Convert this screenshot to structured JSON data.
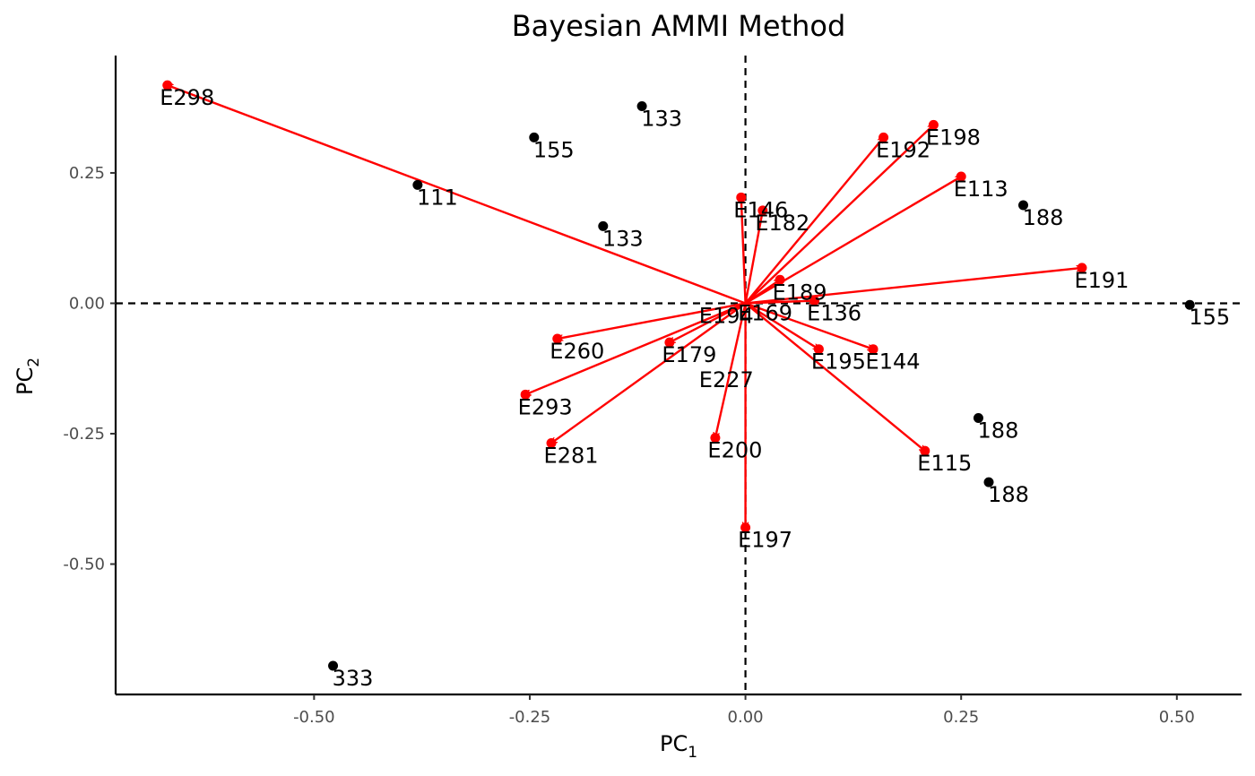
{
  "chart_data": {
    "type": "scatter",
    "title": "Bayesian AMMI Method",
    "xlabel": {
      "base": "PC",
      "sub": "1"
    },
    "ylabel": {
      "base": "PC",
      "sub": "2"
    },
    "xlim": [
      -0.73,
      0.575
    ],
    "ylim": [
      -0.75,
      0.475
    ],
    "x_ticks": [
      -0.5,
      -0.25,
      0.0,
      0.25,
      0.5
    ],
    "x_tick_labels": [
      "-0.50",
      "-0.25",
      "0.00",
      "0.25",
      "0.50"
    ],
    "y_ticks": [
      -0.5,
      -0.25,
      0.0,
      0.25
    ],
    "y_tick_labels": [
      "-0.50",
      "-0.25",
      "0.00",
      "0.25"
    ],
    "reference_lines": {
      "x": 0,
      "y": 0,
      "style": "dashed"
    },
    "grid": false,
    "colors": {
      "genotype": "#000000",
      "environment": "#ff0000",
      "reference": "#000000"
    },
    "genotypes": [
      {
        "x": -0.12,
        "y": 0.378,
        "label": "133"
      },
      {
        "x": -0.245,
        "y": 0.318,
        "label": "155"
      },
      {
        "x": -0.38,
        "y": 0.227,
        "label": "111"
      },
      {
        "x": -0.165,
        "y": 0.148,
        "label": "133"
      },
      {
        "x": 0.322,
        "y": 0.188,
        "label": "188"
      },
      {
        "x": 0.515,
        "y": -0.003,
        "label": "155"
      },
      {
        "x": 0.27,
        "y": -0.22,
        "label": "188"
      },
      {
        "x": 0.282,
        "y": -0.343,
        "label": "188"
      },
      {
        "x": -0.478,
        "y": -0.695,
        "label": "333"
      }
    ],
    "environments": [
      {
        "x": -0.67,
        "y": 0.418,
        "label": "E298"
      },
      {
        "x": 0.218,
        "y": 0.342,
        "label": "E198"
      },
      {
        "x": 0.16,
        "y": 0.318,
        "label": "E192"
      },
      {
        "x": 0.25,
        "y": 0.243,
        "label": "E113"
      },
      {
        "x": -0.005,
        "y": 0.203,
        "label": "E146"
      },
      {
        "x": 0.02,
        "y": 0.178,
        "label": "E182"
      },
      {
        "x": 0.39,
        "y": 0.068,
        "label": "E191"
      },
      {
        "x": 0.04,
        "y": 0.045,
        "label": "E189"
      },
      {
        "x": 0.08,
        "y": 0.005,
        "label": "E136"
      },
      {
        "x": -0.218,
        "y": -0.068,
        "label": "E260"
      },
      {
        "x": -0.088,
        "y": -0.075,
        "label": "E179"
      },
      {
        "x": -0.255,
        "y": -0.175,
        "label": "E293"
      },
      {
        "x": -0.225,
        "y": -0.268,
        "label": "E281"
      },
      {
        "x": -0.035,
        "y": -0.258,
        "label": "E200"
      },
      {
        "x": 0.085,
        "y": -0.088,
        "label": "E195"
      },
      {
        "x": 0.148,
        "y": -0.088,
        "label": "E144"
      },
      {
        "x": 0.208,
        "y": -0.283,
        "label": "E115"
      },
      {
        "x": 0.0,
        "y": -0.43,
        "label": "E197"
      }
    ],
    "extra_labels": [
      {
        "x": 0.0,
        "y": 0.005,
        "label": "E169"
      },
      {
        "x": -0.045,
        "y": 0.0,
        "label": "E194"
      },
      {
        "x": -0.045,
        "y": -0.123,
        "label": "E227"
      }
    ]
  }
}
